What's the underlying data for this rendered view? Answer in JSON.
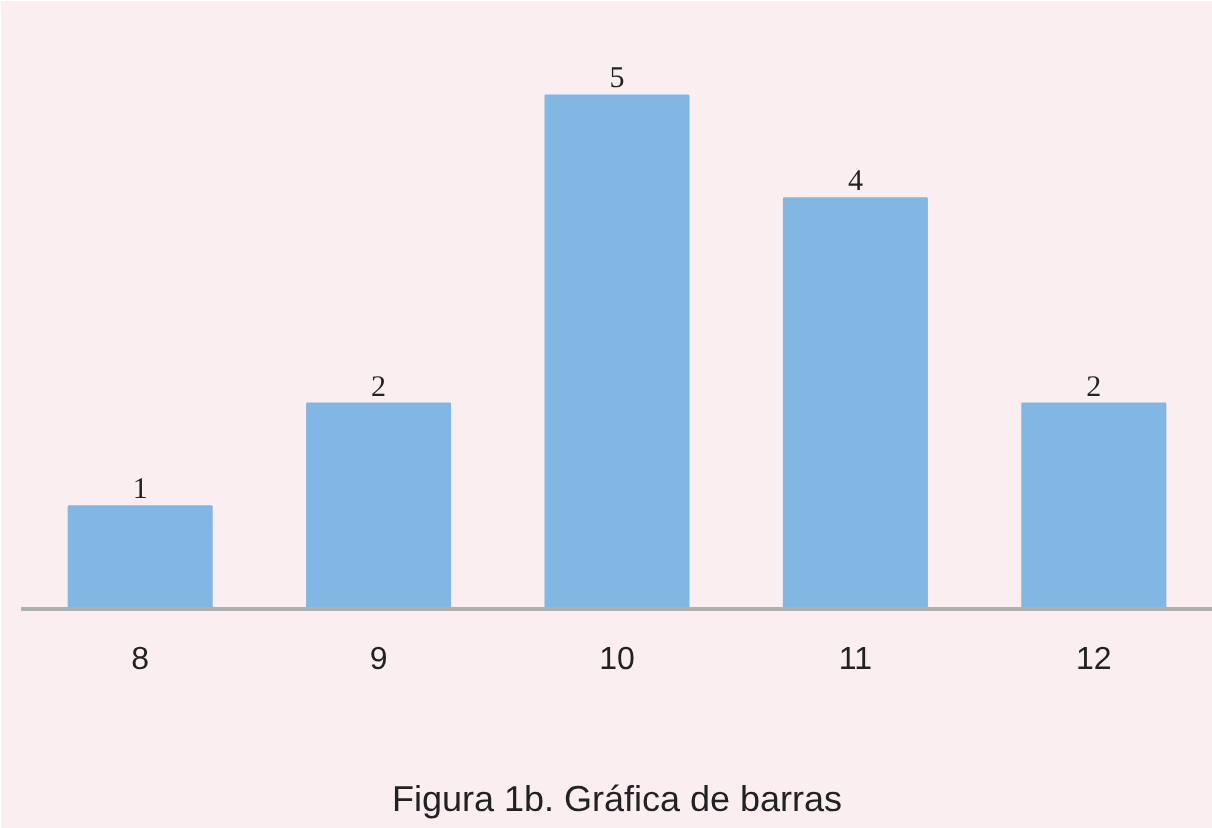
{
  "chart_data": {
    "type": "bar",
    "title": "Figura 1b. Gráfica de barras",
    "categories": [
      "8",
      "9",
      "10",
      "11",
      "12"
    ],
    "values": [
      1,
      2,
      5,
      4,
      2
    ],
    "color": "#82b6e3",
    "data_labels": true,
    "grid": false
  }
}
